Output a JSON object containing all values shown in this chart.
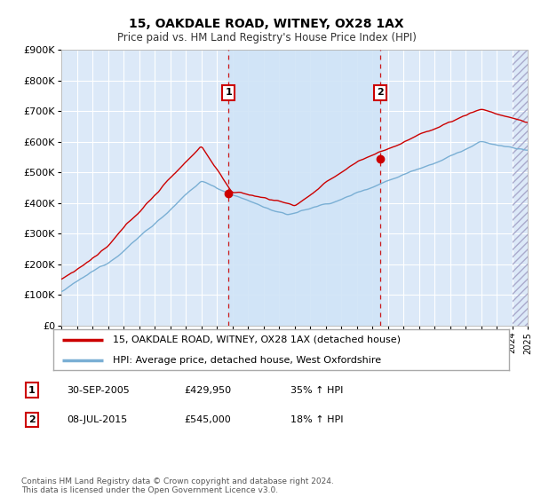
{
  "title": "15, OAKDALE ROAD, WITNEY, OX28 1AX",
  "subtitle": "Price paid vs. HM Land Registry's House Price Index (HPI)",
  "red_label": "15, OAKDALE ROAD, WITNEY, OX28 1AX (detached house)",
  "blue_label": "HPI: Average price, detached house, West Oxfordshire",
  "ylim": [
    0,
    900000
  ],
  "yticks": [
    0,
    100000,
    200000,
    300000,
    400000,
    500000,
    600000,
    700000,
    800000,
    900000
  ],
  "ytick_labels": [
    "£0",
    "£100K",
    "£200K",
    "£300K",
    "£400K",
    "£500K",
    "£600K",
    "£700K",
    "£800K",
    "£900K"
  ],
  "sale1_date": 2005.75,
  "sale1_price": 429950,
  "sale2_date": 2015.5,
  "sale2_price": 545000,
  "footer": "Contains HM Land Registry data © Crown copyright and database right 2024.\nThis data is licensed under the Open Government Licence v3.0.",
  "bg_color": "#dce9f8",
  "highlight_color": "#d0e4f7",
  "plot_bg": "#ffffff",
  "red_color": "#cc0000",
  "blue_color": "#7aafd4",
  "vline_color": "#cc0000",
  "xstart": 1995,
  "xend": 2025,
  "legend_border_color": "#aaaaaa",
  "grid_color": "#ffffff"
}
